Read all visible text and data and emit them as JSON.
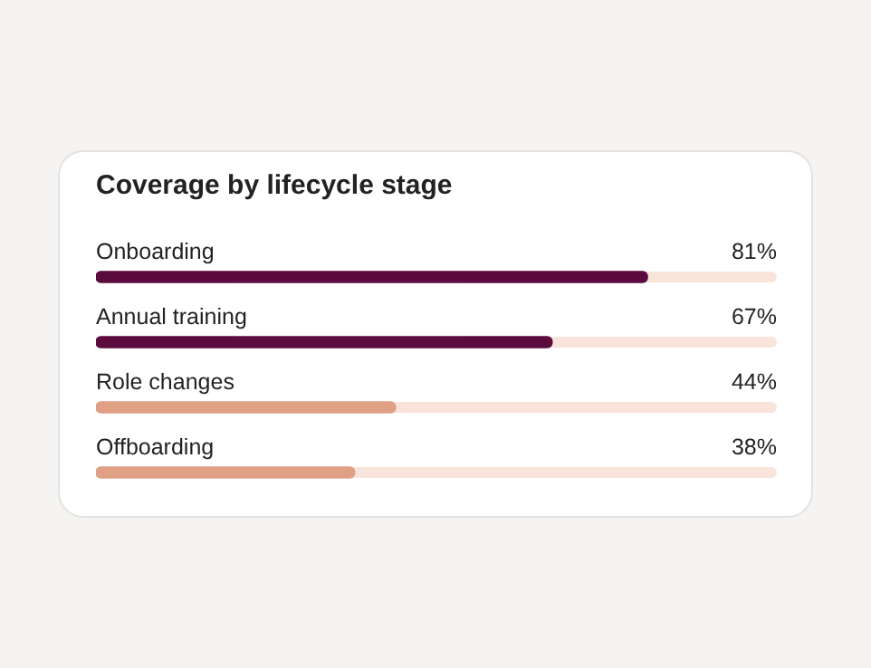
{
  "chart_data": {
    "type": "bar",
    "orientation": "horizontal",
    "title": "Coverage by lifecycle stage",
    "categories": [
      "Onboarding",
      "Annual training",
      "Role changes",
      "Offboarding"
    ],
    "values": [
      81,
      67,
      44,
      38
    ],
    "value_labels": [
      "81%",
      "67%",
      "44%",
      "38%"
    ],
    "colors": [
      "#5c0b3f",
      "#5c0b3f",
      "#e0a085",
      "#e0a085"
    ],
    "xlim": [
      0,
      100
    ]
  }
}
